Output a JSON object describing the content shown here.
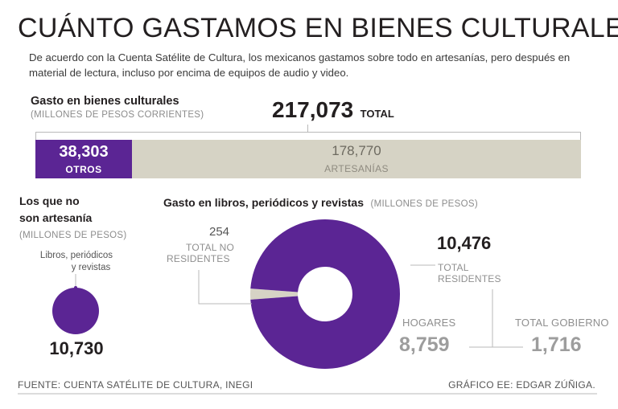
{
  "header": {
    "title": "CUÁNTO GASTAMOS EN BIENES CULTURALES",
    "subtitle": "De acuerdo con la Cuenta Satélite de Cultura, los mexicanos gastamos sobre todo en artesanías, pero después en material de lectura, incluso por encima de equipos de audio y video."
  },
  "colors": {
    "purple": "#5b2594",
    "beige": "#d6d3c5",
    "grey": "#9d9d9d"
  },
  "chart_data": [
    {
      "type": "bar",
      "title": "Gasto en bienes culturales",
      "unit": "(MILLONES DE PESOS CORRIENTES)",
      "total": {
        "value": "217,073",
        "label": "TOTAL"
      },
      "categories": [
        "OTROS",
        "ARTESANÍAS"
      ],
      "values": [
        38303,
        178770
      ],
      "value_labels": [
        "38,303",
        "178,770"
      ]
    },
    {
      "type": "scatter",
      "title": "Los que no son artesanía",
      "title_line1": "Los que no",
      "title_line2": "son artesanía",
      "unit": "(MILLONES DE PESOS)",
      "label_lines": [
        "Libros, periódicos",
        "y revistas"
      ],
      "value": 10730,
      "value_label": "10,730"
    },
    {
      "type": "pie",
      "title": "Gasto en libros, periódicos y revistas",
      "unit": "(MILLONES DE PESOS)",
      "slices": [
        {
          "name": "TOTAL NO RESIDENTES",
          "lines": [
            "TOTAL NO",
            "RESIDENTES"
          ],
          "value": 254,
          "value_label": "254"
        },
        {
          "name": "TOTAL RESIDENTES",
          "lines": [
            "TOTAL",
            "RESIDENTES"
          ],
          "value": 10476,
          "value_label": "10,476"
        }
      ],
      "breakdown": [
        {
          "name": "HOGARES",
          "value": 8759,
          "value_label": "8,759"
        },
        {
          "name": "TOTAL GOBIERNO",
          "value": 1716,
          "value_label": "1,716"
        }
      ]
    }
  ],
  "footer": {
    "source": "FUENTE: CUENTA SATÉLITE DE CULTURA, INEGI",
    "credit": "GRÁFICO EE: EDGAR ZÚÑIGA."
  }
}
